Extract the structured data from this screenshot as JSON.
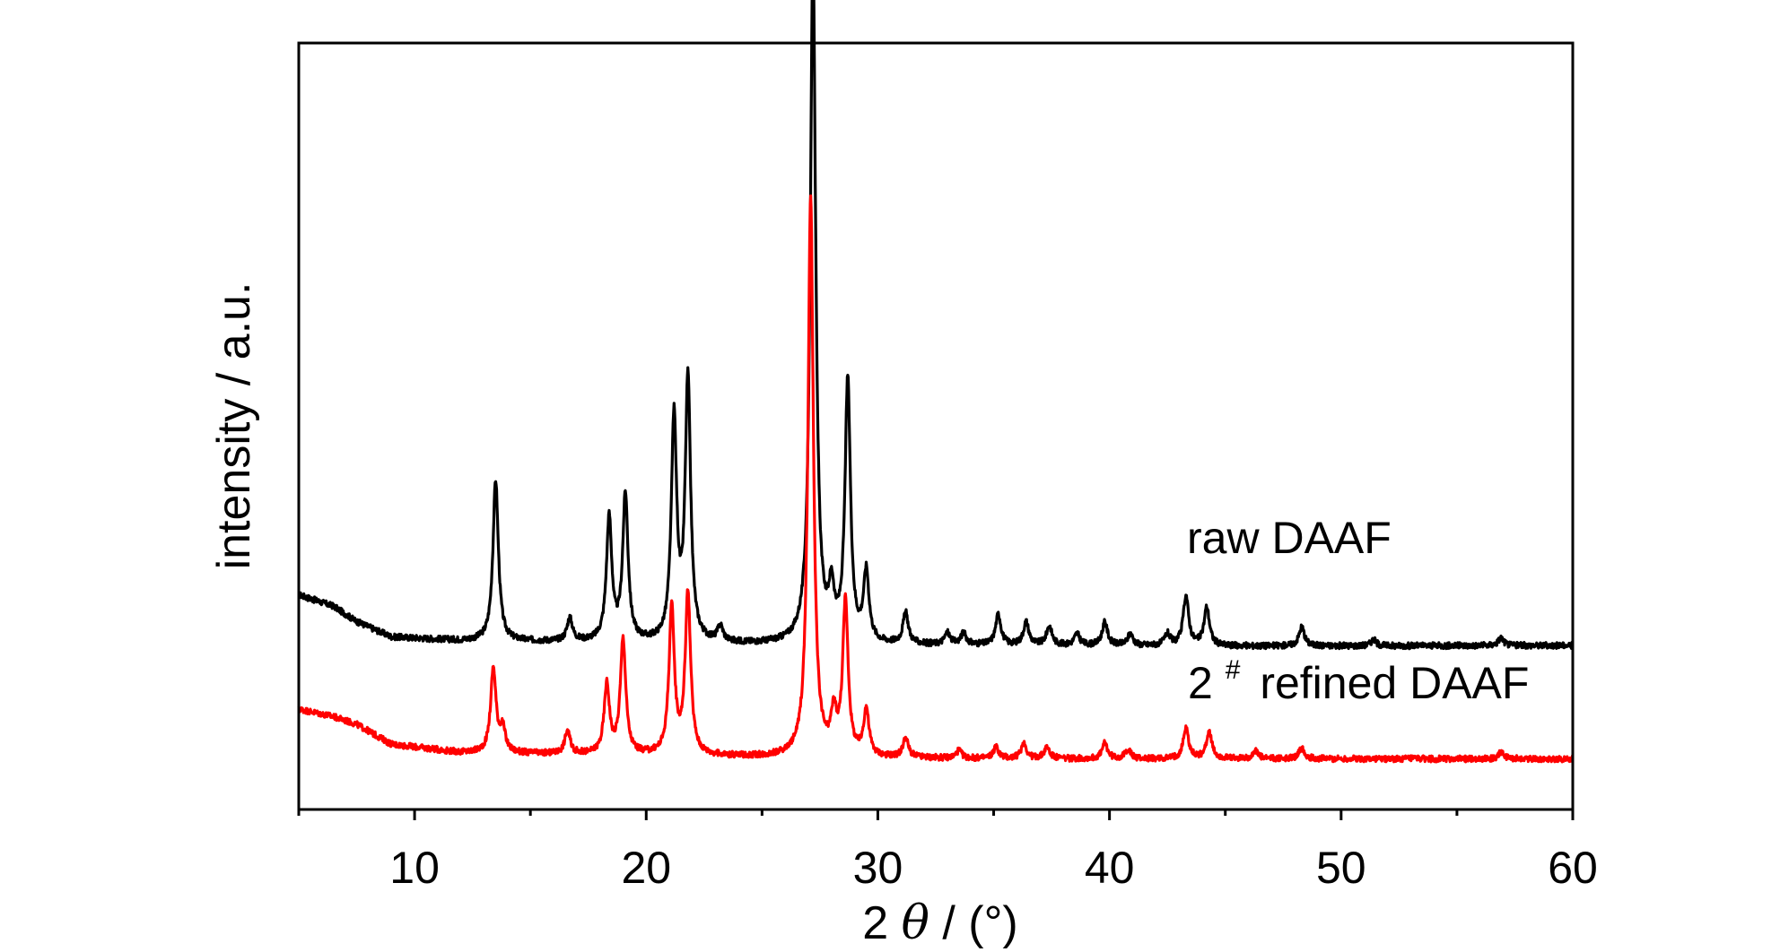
{
  "chart_data": {
    "type": "line",
    "xlabel": {
      "number": "2",
      "symbol": "θ",
      "rest": "/ (°)"
    },
    "ylabel": "intensity / a.u.",
    "xlim": [
      5,
      60
    ],
    "xticks_major": [
      10,
      20,
      30,
      40,
      50,
      60
    ],
    "xticks_minor": [
      5,
      15,
      25,
      35,
      45,
      55
    ],
    "ylim": [
      0,
      1
    ],
    "yticks": [],
    "grid": false,
    "legend": "none",
    "baseline_x_start": 5,
    "peak_width": 0.14,
    "series": [
      {
        "name": "raw DAAF",
        "color": "#000000",
        "label_number": "",
        "label_sup": "",
        "label_text": "raw DAAF",
        "baseline": [
          [
            5,
            0.28
          ],
          [
            6.5,
            0.265
          ],
          [
            7.5,
            0.245
          ],
          [
            9,
            0.225
          ],
          [
            12,
            0.22
          ],
          [
            18,
            0.218
          ],
          [
            25,
            0.215
          ],
          [
            35,
            0.214
          ],
          [
            45,
            0.213
          ],
          [
            60,
            0.214
          ]
        ],
        "peaks": [
          [
            13.5,
            0.21
          ],
          [
            16.7,
            0.03
          ],
          [
            18.4,
            0.16
          ],
          [
            19.1,
            0.19
          ],
          [
            21.2,
            0.29
          ],
          [
            21.8,
            0.34
          ],
          [
            23.2,
            0.02
          ],
          [
            27.2,
            0.9
          ],
          [
            28.0,
            0.06
          ],
          [
            28.7,
            0.34
          ],
          [
            29.5,
            0.09
          ],
          [
            31.2,
            0.04
          ],
          [
            33.0,
            0.015
          ],
          [
            33.7,
            0.015
          ],
          [
            35.2,
            0.04
          ],
          [
            36.4,
            0.03
          ],
          [
            37.4,
            0.025
          ],
          [
            38.6,
            0.015
          ],
          [
            39.8,
            0.03
          ],
          [
            40.9,
            0.015
          ],
          [
            42.5,
            0.015
          ],
          [
            43.3,
            0.065
          ],
          [
            44.2,
            0.05
          ],
          [
            48.3,
            0.025
          ],
          [
            51.4,
            0.008
          ],
          [
            56.9,
            0.01
          ]
        ],
        "noise": 0.004
      },
      {
        "name": "2# refined DAAF",
        "color": "#ff0000",
        "label_number": "2",
        "label_sup": "#",
        "label_text": "refined DAAF",
        "baseline": [
          [
            5,
            0.131
          ],
          [
            6.5,
            0.121
          ],
          [
            7.5,
            0.111
          ],
          [
            9,
            0.085
          ],
          [
            12,
            0.074
          ],
          [
            18,
            0.071
          ],
          [
            25,
            0.068
          ],
          [
            35,
            0.066
          ],
          [
            45,
            0.066
          ],
          [
            60,
            0.066
          ]
        ],
        "peaks": [
          [
            13.4,
            0.11
          ],
          [
            13.8,
            0.03
          ],
          [
            16.6,
            0.03
          ],
          [
            18.3,
            0.09
          ],
          [
            19.0,
            0.15
          ],
          [
            21.1,
            0.19
          ],
          [
            21.8,
            0.21
          ],
          [
            27.1,
            0.73
          ],
          [
            28.1,
            0.05
          ],
          [
            28.6,
            0.2
          ],
          [
            29.5,
            0.06
          ],
          [
            31.2,
            0.025
          ],
          [
            33.5,
            0.01
          ],
          [
            35.1,
            0.015
          ],
          [
            36.3,
            0.02
          ],
          [
            37.3,
            0.015
          ],
          [
            39.8,
            0.02
          ],
          [
            40.8,
            0.012
          ],
          [
            43.3,
            0.04
          ],
          [
            44.3,
            0.035
          ],
          [
            46.3,
            0.01
          ],
          [
            48.3,
            0.015
          ],
          [
            56.9,
            0.008
          ]
        ],
        "noise": 0.004
      }
    ]
  }
}
